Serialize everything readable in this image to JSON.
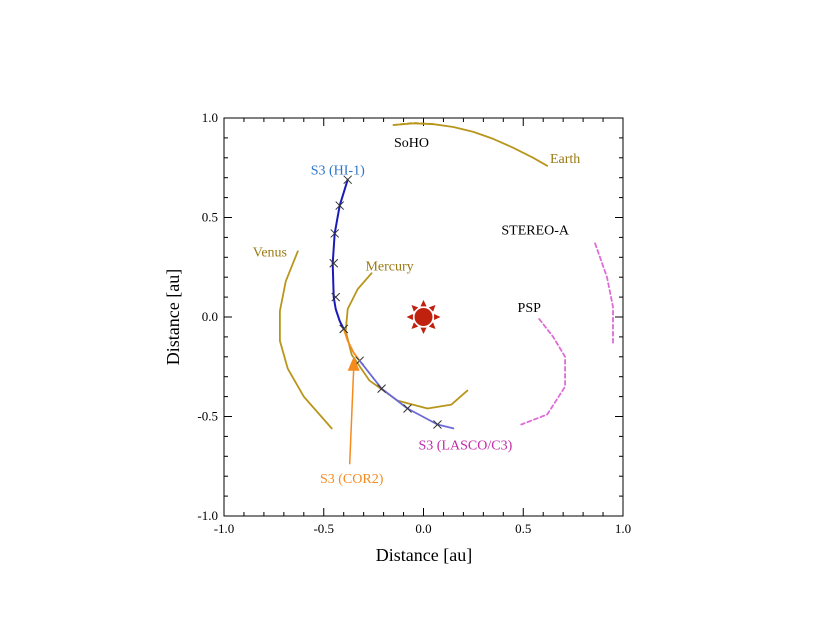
{
  "chart_data": {
    "type": "scatter",
    "title": "",
    "xlabel": "Distance [au]",
    "ylabel": "Distance [au]",
    "xlim": [
      -1.0,
      1.0
    ],
    "ylim": [
      -1.0,
      1.0
    ],
    "grid": false,
    "x_tick_labels": [
      "-1.0",
      "-0.5",
      "0.0",
      "0.5",
      "1.0"
    ],
    "y_tick_labels": [
      "-1.0",
      "-0.5",
      "0.0",
      "0.5",
      "1.0"
    ],
    "sun": {
      "x": 0.0,
      "y": 0.0,
      "color": "#c0200e"
    },
    "series": [
      {
        "name": "Earth",
        "color": "#b8961c",
        "style": "solid",
        "x": [
          -0.15,
          -0.05,
          0.05,
          0.15,
          0.25,
          0.35,
          0.45,
          0.55,
          0.62
        ],
        "y": [
          0.965,
          0.973,
          0.969,
          0.955,
          0.93,
          0.895,
          0.85,
          0.8,
          0.76
        ]
      },
      {
        "name": "SoHO",
        "color": "#b8961c",
        "style": "dashed",
        "x": [
          -0.15,
          -0.05,
          0.05
        ],
        "y": [
          0.965,
          0.975,
          0.97
        ]
      },
      {
        "name": "Venus",
        "color": "#b8961c",
        "style": "solid",
        "x": [
          -0.63,
          -0.69,
          -0.72,
          -0.72,
          -0.68,
          -0.6,
          -0.46
        ],
        "y": [
          0.33,
          0.18,
          0.03,
          -0.12,
          -0.26,
          -0.4,
          -0.56
        ]
      },
      {
        "name": "Mercury",
        "color": "#b8961c",
        "style": "solid",
        "x": [
          -0.26,
          -0.33,
          -0.38,
          -0.39,
          -0.36,
          -0.27,
          -0.13,
          0.02,
          0.14,
          0.22
        ],
        "y": [
          0.22,
          0.14,
          0.04,
          -0.07,
          -0.19,
          -0.32,
          -0.42,
          -0.46,
          -0.44,
          -0.37
        ]
      },
      {
        "name": "STEREO-A",
        "color": "#e06ad8",
        "style": "dashed",
        "x": [
          0.86,
          0.92,
          0.95,
          0.95
        ],
        "y": [
          0.37,
          0.2,
          0.05,
          -0.13
        ]
      },
      {
        "name": "PSP",
        "color": "#e06ad8",
        "style": "dashed",
        "x": [
          0.58,
          0.65,
          0.71,
          0.71,
          0.62,
          0.49
        ],
        "y": [
          -0.01,
          -0.1,
          -0.2,
          -0.35,
          -0.49,
          -0.54
        ]
      },
      {
        "name": "S3 (HI-1)",
        "color": "#1a1ab8",
        "style": "solid",
        "x": [
          -0.38,
          -0.42,
          -0.445,
          -0.455,
          -0.45,
          -0.44,
          -0.42,
          -0.4
        ],
        "y": [
          0.69,
          0.56,
          0.42,
          0.27,
          0.1,
          0.04,
          -0.02,
          -0.06
        ],
        "markers_x": [
          -0.38,
          -0.42,
          -0.445,
          -0.45,
          -0.44,
          -0.4
        ],
        "markers_y": [
          0.69,
          0.56,
          0.42,
          0.27,
          0.1,
          -0.06
        ]
      },
      {
        "name": "S3 (COR2)",
        "color": "#f58a1f",
        "style": "solid",
        "x": [
          -0.4,
          -0.38,
          -0.35,
          -0.32
        ],
        "y": [
          -0.06,
          -0.12,
          -0.18,
          -0.22
        ],
        "markers_x": [
          -0.4,
          -0.32
        ],
        "markers_y": [
          -0.06,
          -0.22
        ]
      },
      {
        "name": "S3 (LASCO/C3)",
        "color": "#6a6ad8",
        "style": "solid",
        "x": [
          -0.32,
          -0.21,
          -0.08,
          0.07,
          0.15
        ],
        "y": [
          -0.22,
          -0.36,
          -0.46,
          -0.54,
          -0.56
        ],
        "markers_x": [
          -0.21,
          -0.08,
          0.07
        ],
        "markers_y": [
          -0.36,
          -0.46,
          -0.54
        ]
      }
    ],
    "annotations": [
      {
        "text": "SoHO",
        "x": -0.06,
        "y": 0.88,
        "color": "#000000"
      },
      {
        "text": "Earth",
        "x": 0.71,
        "y": 0.8,
        "color": "#9a7a14"
      },
      {
        "text": "S3 (HI-1)",
        "x": -0.43,
        "y": 0.74,
        "color": "#2a73c9"
      },
      {
        "text": "STEREO-A",
        "x": 0.56,
        "y": 0.44,
        "color": "#000000"
      },
      {
        "text": "Venus",
        "x": -0.77,
        "y": 0.33,
        "color": "#9a7a14"
      },
      {
        "text": "Mercury",
        "x": -0.17,
        "y": 0.26,
        "color": "#9a7a14"
      },
      {
        "text": "PSP",
        "x": 0.53,
        "y": 0.05,
        "color": "#000000"
      },
      {
        "text": "S3 (LASCO/C3)",
        "x": 0.21,
        "y": -0.64,
        "color": "#c02aa8"
      },
      {
        "text": "S3 (COR2)",
        "x": -0.36,
        "y": -0.81,
        "color": "#f58a1f"
      }
    ]
  }
}
